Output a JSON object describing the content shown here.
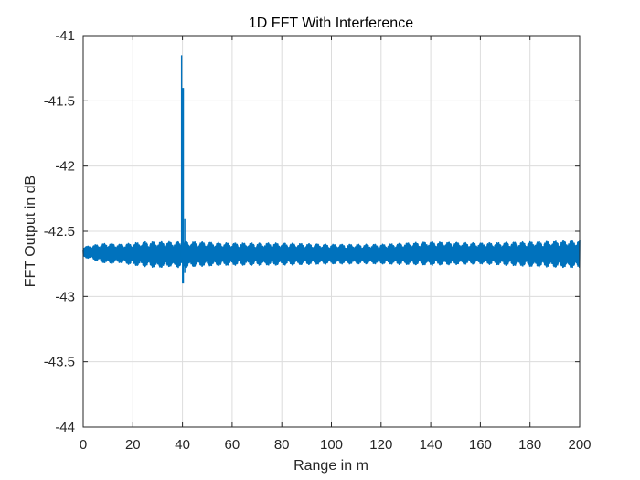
{
  "chart_data": {
    "type": "line",
    "title": "1D FFT With Interference",
    "xlabel": "Range in m",
    "ylabel": "FFT Output in dB",
    "xlim": [
      0,
      200
    ],
    "ylim": [
      -44,
      -41
    ],
    "xticks": [
      0,
      20,
      40,
      60,
      80,
      100,
      120,
      140,
      160,
      180,
      200
    ],
    "yticks": [
      -41,
      -41.5,
      -42,
      -42.5,
      -43,
      -43.5,
      -44
    ],
    "xtick_labels": [
      "0",
      "20",
      "40",
      "60",
      "80",
      "100",
      "120",
      "140",
      "160",
      "180",
      "200"
    ],
    "ytick_labels": [
      "-41",
      "-41.5",
      "-42",
      "-42.5",
      "-43",
      "-43.5",
      "-44"
    ],
    "grid": true,
    "series": [
      {
        "color": "#0072BD",
        "baseline": -42.67,
        "envelope": [
          [
            0,
            -42.62,
            -42.7
          ],
          [
            3,
            -42.61,
            -42.71
          ],
          [
            6,
            -42.6,
            -42.73
          ],
          [
            10,
            -42.59,
            -42.75
          ],
          [
            15,
            -42.6,
            -42.74
          ],
          [
            20,
            -42.59,
            -42.76
          ],
          [
            25,
            -42.58,
            -42.77
          ],
          [
            30,
            -42.58,
            -42.78
          ],
          [
            35,
            -42.58,
            -42.77
          ],
          [
            39,
            -42.58,
            -42.78
          ],
          [
            45,
            -42.58,
            -42.77
          ],
          [
            60,
            -42.59,
            -42.76
          ],
          [
            80,
            -42.59,
            -42.76
          ],
          [
            100,
            -42.6,
            -42.75
          ],
          [
            120,
            -42.6,
            -42.75
          ],
          [
            140,
            -42.58,
            -42.76
          ],
          [
            160,
            -42.59,
            -42.75
          ],
          [
            180,
            -42.58,
            -42.77
          ],
          [
            200,
            -42.57,
            -42.78
          ]
        ],
        "peak": {
          "x": 40.2,
          "y_max": -41.4,
          "y_min": -42.9
        }
      }
    ]
  }
}
